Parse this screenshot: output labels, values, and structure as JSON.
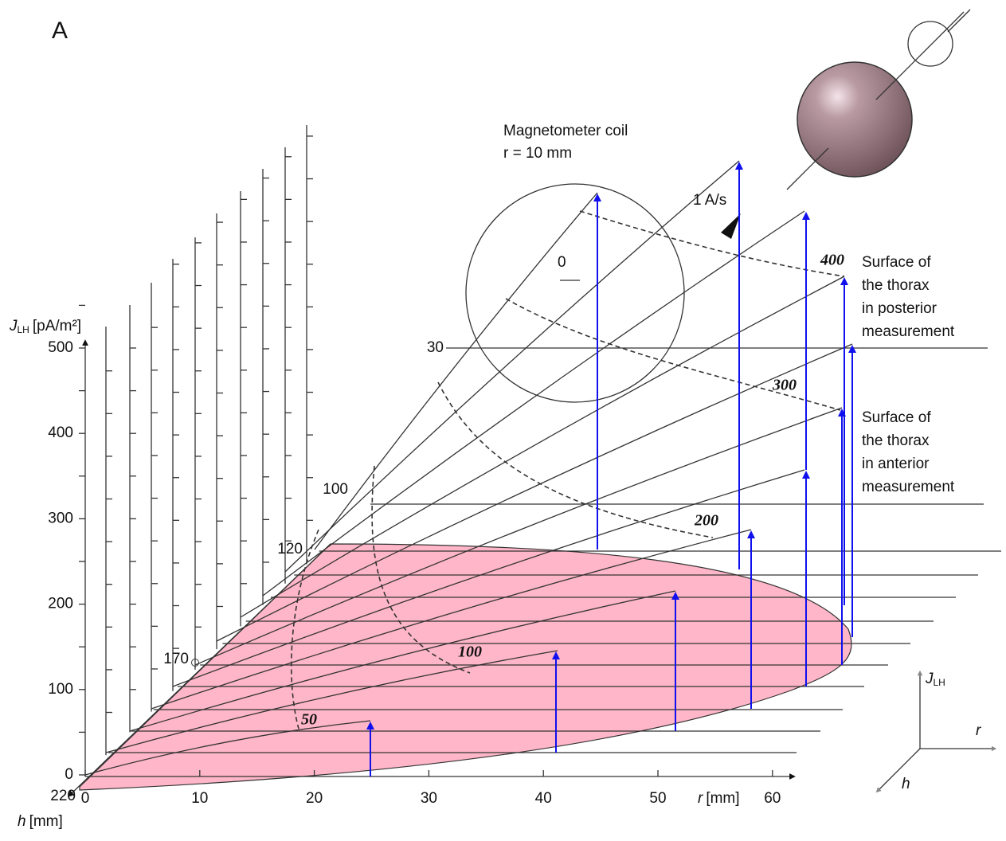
{
  "panel_label": "A",
  "j_axis": {
    "symbol": "J",
    "subscript": "LH",
    "unit": "[pA/m²]",
    "ticks": [
      0,
      100,
      200,
      300,
      400,
      500
    ]
  },
  "r_axis": {
    "symbol": "r",
    "unit": "[mm]",
    "ticks": [
      0,
      10,
      20,
      30,
      40,
      50,
      60
    ]
  },
  "h_axis": {
    "symbol": "h",
    "unit": "[mm]",
    "ticks": [
      220,
      170,
      120,
      100,
      30
    ]
  },
  "coil": {
    "title": "Magnetometer coil",
    "radius": "r = 10 mm"
  },
  "current_label": "1 A/s",
  "zero_label": "0",
  "posterior_surface": [
    "Surface of",
    "the thorax",
    "in posterior",
    "measurement"
  ],
  "anterior_surface": [
    "Surface of",
    "the thorax",
    "in anterior",
    "measurement"
  ],
  "contour_labels": [
    50,
    100,
    200,
    300,
    400
  ],
  "compass": {
    "vertical": "J",
    "vertical_sub": "LH",
    "right": "r",
    "oblique": "h"
  }
}
